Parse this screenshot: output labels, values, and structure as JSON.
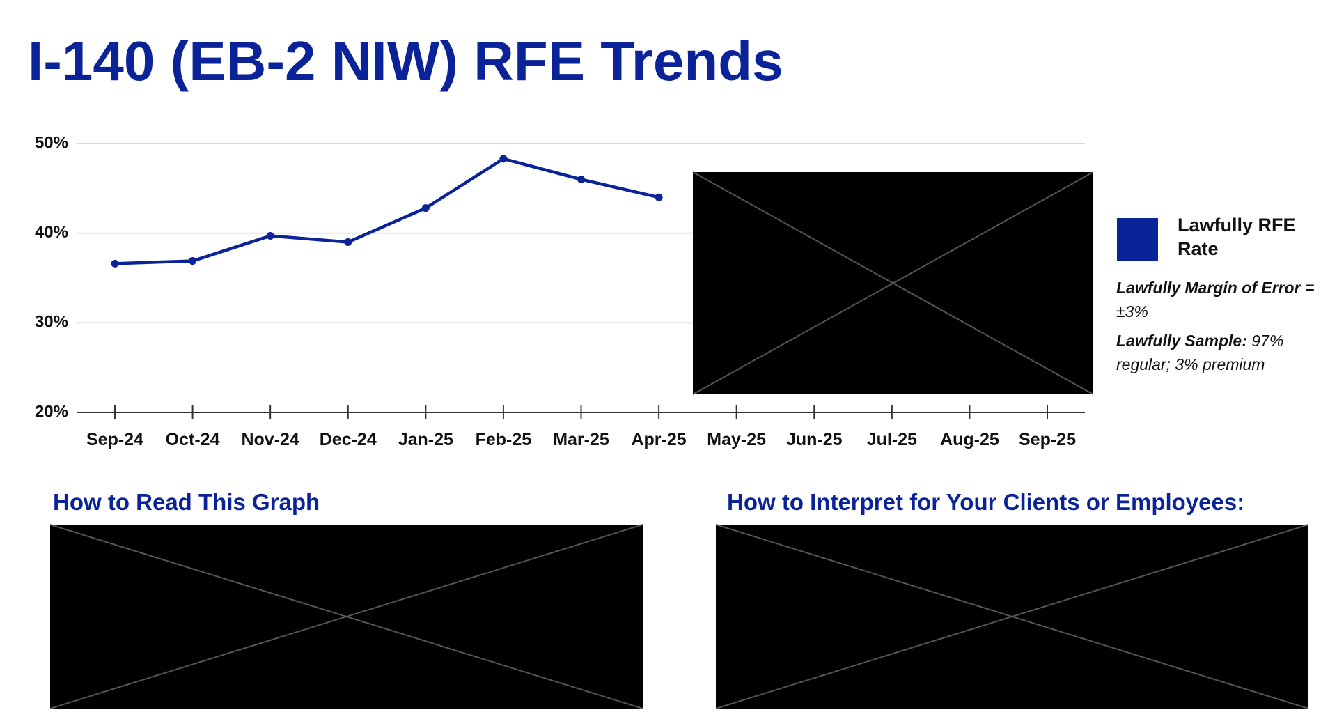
{
  "title": "I-140 (EB-2 NIW) RFE Trends",
  "chart_data": {
    "type": "line",
    "categories": [
      "Sep-24",
      "Oct-24",
      "Nov-24",
      "Dec-24",
      "Jan-25",
      "Feb-25",
      "Mar-25",
      "Apr-25",
      "May-25",
      "Jun-25",
      "Jul-25",
      "Aug-25",
      "Sep-25"
    ],
    "series": [
      {
        "name": "Lawfully RFE Rate",
        "color": "#0b2399",
        "values": [
          36.6,
          36.9,
          39.7,
          39.0,
          42.8,
          48.3,
          46.0,
          44.0,
          null,
          null,
          null,
          null,
          null
        ]
      }
    ],
    "ylim": [
      20,
      50
    ],
    "yticks": [
      {
        "value": 20,
        "label": "20%"
      },
      {
        "value": 30,
        "label": "30%"
      },
      {
        "value": 40,
        "label": "40%"
      },
      {
        "value": 50,
        "label": "50%"
      }
    ],
    "grid": true
  },
  "notes": [
    {
      "label": "Lawfully Margin of Error =",
      "text": "±3%"
    },
    {
      "label": "Lawfully Sample:",
      "text": "97% regular; 3% premium"
    }
  ],
  "sections": [
    "How to Read This Graph",
    "How to Interpret for Your Clients or Employees:"
  ]
}
